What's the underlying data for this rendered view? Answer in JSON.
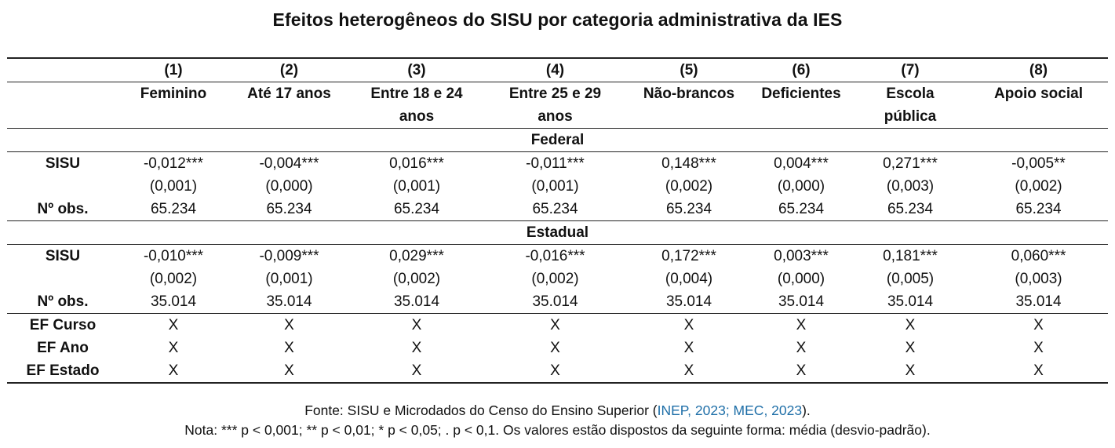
{
  "title": "Efeitos heterogêneos do SISU por categoria administrativa da IES",
  "columns": [
    {
      "num": "(1)",
      "name": "Feminino",
      "name2": ""
    },
    {
      "num": "(2)",
      "name": "Até 17 anos",
      "name2": ""
    },
    {
      "num": "(3)",
      "name": "Entre 18 e 24",
      "name2": "anos"
    },
    {
      "num": "(4)",
      "name": "Entre 25 e 29",
      "name2": "anos"
    },
    {
      "num": "(5)",
      "name": "Não-brancos",
      "name2": ""
    },
    {
      "num": "(6)",
      "name": "Deficientes",
      "name2": ""
    },
    {
      "num": "(7)",
      "name": "Escola",
      "name2": "pública"
    },
    {
      "num": "(8)",
      "name": "Apoio social",
      "name2": ""
    }
  ],
  "federal": {
    "section_label": "Federal",
    "sisu_label": "SISU",
    "obs_label": "Nº obs.",
    "estimates": [
      "-0,012***",
      "-0,004***",
      "0,016***",
      "-0,011***",
      "0,148***",
      "0,004***",
      "0,271***",
      "-0,005**"
    ],
    "std_errors": [
      "(0,001)",
      "(0,000)",
      "(0,001)",
      "(0,001)",
      "(0,002)",
      "(0,000)",
      "(0,003)",
      "(0,002)"
    ],
    "obs": [
      "65.234",
      "65.234",
      "65.234",
      "65.234",
      "65.234",
      "65.234",
      "65.234",
      "65.234"
    ]
  },
  "estadual": {
    "section_label": "Estadual",
    "sisu_label": "SISU",
    "obs_label": "Nº obs.",
    "estimates": [
      "-0,010***",
      "-0,009***",
      "0,029***",
      "-0,016***",
      "0,172***",
      "0,003***",
      "0,181***",
      "0,060***"
    ],
    "std_errors": [
      "(0,002)",
      "(0,001)",
      "(0,002)",
      "(0,002)",
      "(0,004)",
      "(0,000)",
      "(0,005)",
      "(0,003)"
    ],
    "obs": [
      "35.014",
      "35.014",
      "35.014",
      "35.014",
      "35.014",
      "35.014",
      "35.014",
      "35.014"
    ]
  },
  "fixed_effects": [
    {
      "label": "EF Curso",
      "marks": [
        "X",
        "X",
        "X",
        "X",
        "X",
        "X",
        "X",
        "X"
      ]
    },
    {
      "label": "EF Ano",
      "marks": [
        "X",
        "X",
        "X",
        "X",
        "X",
        "X",
        "X",
        "X"
      ]
    },
    {
      "label": "EF Estado",
      "marks": [
        "X",
        "X",
        "X",
        "X",
        "X",
        "X",
        "X",
        "X"
      ]
    }
  ],
  "footer": {
    "source_prefix": "Fonte: SISU e Microdados do Censo do Ensino Superior (",
    "source_citation": "INEP, 2023; MEC, 2023",
    "source_suffix": ").",
    "note": "Nota: *** p < 0,001; ** p < 0,01; * p < 0,05; . p < 0,1. Os valores estão dispostos da seguinte forma: média (desvio-padrão).",
    "citation_color": "#1f6fa8"
  }
}
